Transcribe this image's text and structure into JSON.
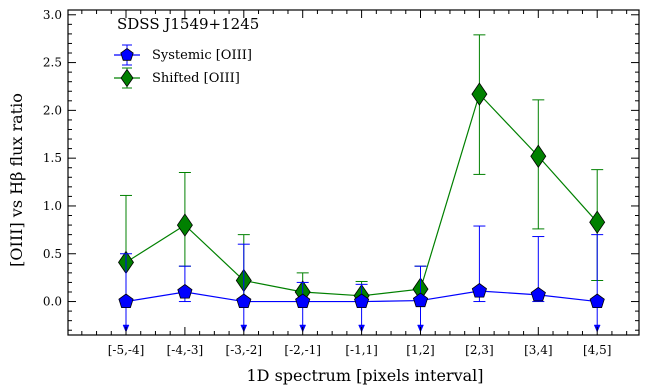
{
  "chart_data": {
    "type": "line",
    "annotation": "SDSS J1549+1245",
    "xlabel": "1D spectrum [pixels interval]",
    "ylabel": "[OIII] vs Hβ flux ratio",
    "categories": [
      "[-5,-4]",
      "[-4,-3]",
      "[-3,-2]",
      "[-2,-1]",
      "[-1,1]",
      "[1,2]",
      "[2,3]",
      "[3,4]",
      "[4,5]"
    ],
    "ylim": [
      -0.35,
      3.05
    ],
    "yticks": [
      "0.0",
      "0.5",
      "1.0",
      "1.5",
      "2.0",
      "2.5",
      "3.0"
    ],
    "legend_placement": "top-left",
    "series": [
      {
        "name": "Systemic [OIII]",
        "color": "#0000ff",
        "marker": "pentagon",
        "values": [
          0.0,
          0.1,
          0.0,
          0.0,
          0.0,
          0.01,
          0.11,
          0.07,
          0.0
        ],
        "err_low": [
          0.0,
          0.1,
          0.0,
          0.0,
          0.0,
          0.01,
          0.11,
          0.07,
          0.0
        ],
        "err_high": [
          0.5,
          0.27,
          0.6,
          0.2,
          0.18,
          0.36,
          0.68,
          0.61,
          0.7
        ],
        "upper_limit": [
          true,
          false,
          true,
          true,
          true,
          true,
          false,
          false,
          true
        ]
      },
      {
        "name": "Shifted [OIII]",
        "color": "#008000",
        "marker": "diamond",
        "values": [
          0.41,
          0.8,
          0.22,
          0.1,
          0.06,
          0.13,
          2.17,
          1.52,
          0.83
        ],
        "err_low": [
          0.01,
          0.43,
          0.22,
          0.1,
          0.06,
          0.13,
          0.84,
          0.76,
          0.61
        ],
        "err_high": [
          0.7,
          0.55,
          0.48,
          0.2,
          0.15,
          0.24,
          0.62,
          0.59,
          0.55
        ],
        "upper_limit": [
          false,
          false,
          false,
          false,
          false,
          false,
          false,
          false,
          false
        ]
      }
    ]
  }
}
